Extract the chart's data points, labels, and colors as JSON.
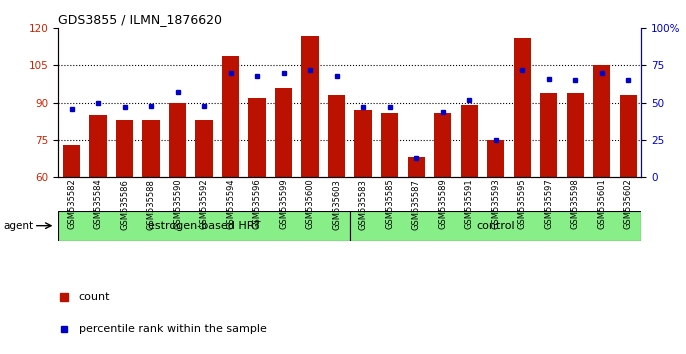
{
  "title": "GDS3855 / ILMN_1876620",
  "samples": [
    "GSM535582",
    "GSM535584",
    "GSM535586",
    "GSM535588",
    "GSM535590",
    "GSM535592",
    "GSM535594",
    "GSM535596",
    "GSM535599",
    "GSM535600",
    "GSM535603",
    "GSM535583",
    "GSM535585",
    "GSM535587",
    "GSM535589",
    "GSM535591",
    "GSM535593",
    "GSM535595",
    "GSM535597",
    "GSM535598",
    "GSM535601",
    "GSM535602"
  ],
  "red_values": [
    73,
    85,
    83,
    83,
    90,
    83,
    109,
    92,
    96,
    117,
    93,
    87,
    86,
    68,
    86,
    89,
    75,
    116,
    94,
    94,
    105,
    93
  ],
  "blue_percentiles": [
    46,
    50,
    47,
    48,
    57,
    48,
    70,
    68,
    70,
    72,
    68,
    47,
    47,
    13,
    44,
    52,
    25,
    72,
    66,
    65,
    70,
    65
  ],
  "group1_label": "estrogen-based HRT",
  "group1_count": 11,
  "group2_label": "control",
  "group2_count": 11,
  "agent_label": "agent",
  "ylim_left": [
    60,
    120
  ],
  "ylim_right": [
    0,
    100
  ],
  "yticks_left": [
    60,
    75,
    90,
    105,
    120
  ],
  "yticks_right": [
    0,
    25,
    50,
    75,
    100
  ],
  "bar_color": "#bb1100",
  "dot_color": "#0000cc",
  "bg_color": "#ffffff",
  "group_bg_color": "#88ee88",
  "tick_label_color_left": "#cc2200",
  "tick_label_color_right": "#0000cc",
  "legend_count_label": "count",
  "legend_pct_label": "percentile rank within the sample"
}
